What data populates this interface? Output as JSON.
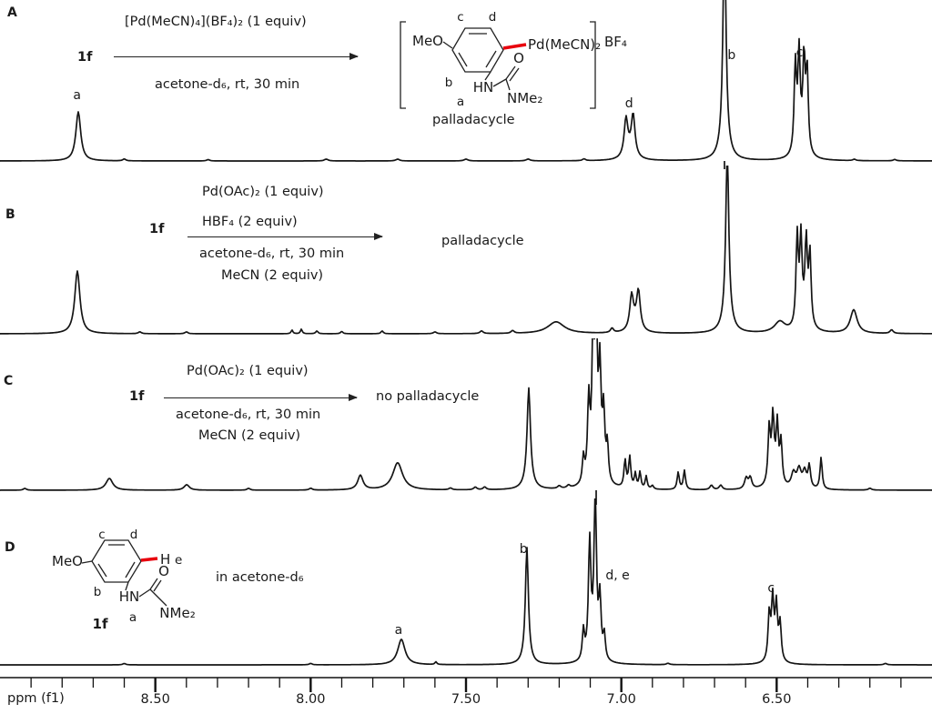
{
  "panel_letters": {
    "A": "A",
    "B": "B",
    "C": "C",
    "D": "D"
  },
  "scheme_A": {
    "reactant": "1f",
    "above": "[Pd(MeCN)₄](BF₄)₂ (1 equiv)",
    "below": "acetone-d₆, rt, 30 min",
    "caption": "palladacycle"
  },
  "scheme_B": {
    "reactant": "1f",
    "above1": "Pd(OAc)₂ (1 equiv)",
    "above2": "HBF₄ (2 equiv)",
    "below1": "acetone-d₆, rt, 30 min",
    "below2": "MeCN (2 equiv)",
    "product": "palladacycle"
  },
  "scheme_C": {
    "reactant": "1f",
    "above1": "Pd(OAc)₂ (1 equiv)",
    "below1": "acetone-d₆, rt, 30 min",
    "below2": "MeCN (2 equiv)",
    "product": "no palladacycle"
  },
  "scheme_D": {
    "note": "in acetone-d₆"
  },
  "structure_A": {
    "meo": "MeO",
    "ring_c": "c",
    "ring_d": "d",
    "ring_b": "b",
    "label_a": "a",
    "hn": "HN",
    "o": "O",
    "nme2": "NMe₂",
    "pd": "Pd(MeCN)₂",
    "counterion": "BF₄"
  },
  "structure_D": {
    "meo": "MeO",
    "ring_c": "c",
    "ring_d": "d",
    "ring_b": "b",
    "label_a": "a",
    "hn": "HN",
    "o": "O",
    "nme2": "NMe₂",
    "h": "H",
    "e": "e",
    "name": "1f"
  },
  "axis": {
    "label": "ppm (f1)",
    "range": [
      9.0,
      6.0
    ],
    "major_ticks": [
      8.5,
      8.0,
      7.5,
      7.0,
      6.5
    ],
    "minor_step": 0.1,
    "minor_start": 8.9,
    "minor_end": 6.1
  },
  "chart_data": [
    {
      "panel": "A",
      "type": "line",
      "description": "1H NMR, 1f + [Pd(MeCN)4](BF4)2 in acetone-d6, rt, 30 min -> palladacycle",
      "x_unit": "ppm",
      "x_range": [
        9.0,
        6.0
      ],
      "peaks_format": [
        "ppm",
        "height_px",
        "halfwidth_px"
      ],
      "peaks": [
        [
          8.748,
          54,
          3.2
        ],
        [
          8.6,
          2,
          2
        ],
        [
          8.33,
          1.5,
          2
        ],
        [
          7.95,
          2,
          2.5
        ],
        [
          7.72,
          2,
          2.5
        ],
        [
          7.5,
          2,
          2.5
        ],
        [
          7.3,
          2,
          2.5
        ],
        [
          7.12,
          2,
          2
        ],
        [
          6.985,
          40,
          2.4
        ],
        [
          6.962,
          44,
          2.4
        ],
        [
          6.973,
          8,
          7
        ],
        [
          6.668,
          230,
          1.9
        ],
        [
          6.668,
          26,
          5
        ],
        [
          6.44,
          96,
          1.5
        ],
        [
          6.428,
          102,
          1.5
        ],
        [
          6.412,
          97,
          1.5
        ],
        [
          6.402,
          88,
          1.5
        ],
        [
          6.421,
          14,
          6
        ],
        [
          6.25,
          1.5,
          2
        ],
        [
          6.12,
          1.5,
          2
        ]
      ],
      "peak_labels": [
        {
          "text": "a",
          "ppm": 8.752,
          "top": 97
        },
        {
          "text": "d",
          "ppm": 6.975,
          "top": 106
        },
        {
          "text": "b",
          "ppm": 6.645,
          "top": 53
        },
        {
          "text": "c",
          "ppm": 6.426,
          "top": 50
        }
      ],
      "baseline_markers": [
        {
          "ppm": 6.668,
          "len": 9
        }
      ]
    },
    {
      "panel": "B",
      "type": "line",
      "description": "1H NMR, 1f + Pd(OAc)2 + HBF4 + MeCN in acetone-d6 -> palladacycle",
      "x_unit": "ppm",
      "x_range": [
        9.0,
        6.0
      ],
      "peaks_format": [
        "ppm",
        "height_px",
        "halfwidth_px"
      ],
      "peaks": [
        [
          8.751,
          69,
          3.4
        ],
        [
          8.55,
          2,
          2
        ],
        [
          8.4,
          2,
          2
        ],
        [
          8.06,
          4,
          1.2
        ],
        [
          8.03,
          5,
          1.2
        ],
        [
          7.98,
          3,
          1.5
        ],
        [
          7.9,
          2.5,
          1.5
        ],
        [
          7.77,
          3,
          1.5
        ],
        [
          7.6,
          2,
          2
        ],
        [
          7.45,
          3,
          2
        ],
        [
          7.35,
          3,
          2
        ],
        [
          7.21,
          13,
          11
        ],
        [
          7.03,
          5,
          2
        ],
        [
          6.967,
          36,
          2.4
        ],
        [
          6.945,
          41,
          2.4
        ],
        [
          6.956,
          8,
          6
        ],
        [
          6.659,
          178,
          1.9
        ],
        [
          6.659,
          24,
          5
        ],
        [
          6.49,
          12,
          7
        ],
        [
          6.434,
          98,
          1.5
        ],
        [
          6.422,
          92,
          1.5
        ],
        [
          6.405,
          86,
          1.5
        ],
        [
          6.393,
          78,
          1.5
        ],
        [
          6.41,
          13,
          6
        ],
        [
          6.252,
          26,
          4.5
        ],
        [
          6.13,
          4,
          2
        ]
      ],
      "peak_labels": [],
      "baseline_markers": []
    },
    {
      "panel": "C",
      "type": "line",
      "description": "1H NMR, 1f + Pd(OAc)2 + MeCN in acetone-d6 -> no palladacycle",
      "x_unit": "ppm",
      "x_range": [
        9.0,
        6.0
      ],
      "peaks_format": [
        "ppm",
        "height_px",
        "halfwidth_px"
      ],
      "peaks": [
        [
          8.92,
          2,
          2
        ],
        [
          8.648,
          13,
          4.5
        ],
        [
          8.399,
          6,
          3.5
        ],
        [
          8.2,
          2,
          2
        ],
        [
          8.0,
          2,
          2
        ],
        [
          7.84,
          16,
          3.5
        ],
        [
          7.72,
          30,
          6.5
        ],
        [
          7.55,
          2,
          2
        ],
        [
          7.47,
          3,
          2
        ],
        [
          7.44,
          3,
          2
        ],
        [
          7.298,
          100,
          2.1
        ],
        [
          7.298,
          12,
          5
        ],
        [
          7.2,
          3,
          2
        ],
        [
          7.17,
          3,
          2
        ],
        [
          7.122,
          28,
          1.4
        ],
        [
          7.105,
          86,
          1.5
        ],
        [
          7.091,
          148,
          1.5
        ],
        [
          7.081,
          160,
          1.5
        ],
        [
          7.069,
          112,
          1.5
        ],
        [
          7.057,
          72,
          1.5
        ],
        [
          7.045,
          40,
          1.4
        ],
        [
          7.08,
          18,
          7
        ],
        [
          6.988,
          30,
          1.4
        ],
        [
          6.973,
          34,
          1.4
        ],
        [
          6.955,
          16,
          1.3
        ],
        [
          6.94,
          18,
          1.3
        ],
        [
          6.92,
          14,
          1.3
        ],
        [
          6.9,
          4,
          1.5
        ],
        [
          6.817,
          19,
          1.4
        ],
        [
          6.797,
          21,
          1.4
        ],
        [
          6.71,
          5,
          2
        ],
        [
          6.68,
          5,
          2
        ],
        [
          6.598,
          12,
          2.2
        ],
        [
          6.585,
          12,
          2
        ],
        [
          6.524,
          60,
          1.5
        ],
        [
          6.512,
          66,
          1.5
        ],
        [
          6.498,
          62,
          1.5
        ],
        [
          6.486,
          46,
          1.5
        ],
        [
          6.51,
          12,
          5.5
        ],
        [
          6.446,
          16,
          2.8
        ],
        [
          6.428,
          20,
          2.8
        ],
        [
          6.41,
          18,
          2.5
        ],
        [
          6.395,
          24,
          1.6
        ],
        [
          6.357,
          35,
          1.4
        ],
        [
          6.2,
          2,
          2
        ]
      ],
      "peak_labels": [],
      "baseline_markers": [
        {
          "ppm": 7.081,
          "len": 16
        }
      ]
    },
    {
      "panel": "D",
      "type": "line",
      "description": "1H NMR of 1f in acetone-d6",
      "x_unit": "ppm",
      "x_range": [
        9.0,
        6.0
      ],
      "peaks_format": [
        "ppm",
        "height_px",
        "halfwidth_px"
      ],
      "peaks": [
        [
          8.6,
          1.5,
          2
        ],
        [
          8.0,
          1.5,
          2
        ],
        [
          7.708,
          28,
          4.8
        ],
        [
          7.597,
          3,
          1.2
        ],
        [
          7.304,
          116,
          1.9
        ],
        [
          7.304,
          13,
          4
        ],
        [
          7.122,
          32,
          1.4
        ],
        [
          7.102,
          125,
          1.6
        ],
        [
          7.084,
          174,
          1.6
        ],
        [
          7.069,
          64,
          1.5
        ],
        [
          7.055,
          27,
          1.4
        ],
        [
          7.09,
          11,
          6
        ],
        [
          6.85,
          1.5,
          2
        ],
        [
          6.524,
          50,
          1.5
        ],
        [
          6.513,
          62,
          1.5
        ],
        [
          6.501,
          55,
          1.5
        ],
        [
          6.489,
          40,
          1.5
        ],
        [
          6.507,
          9,
          5
        ],
        [
          6.15,
          1.5,
          2
        ]
      ],
      "peak_labels": [
        {
          "text": "a",
          "ppm": 7.717,
          "top": 685
        },
        {
          "text": "b",
          "ppm": 7.315,
          "top": 596
        },
        {
          "text": "d, e",
          "ppm": 7.012,
          "top": 625
        },
        {
          "text": "c",
          "ppm": 6.518,
          "top": 639
        }
      ],
      "baseline_markers": []
    }
  ]
}
